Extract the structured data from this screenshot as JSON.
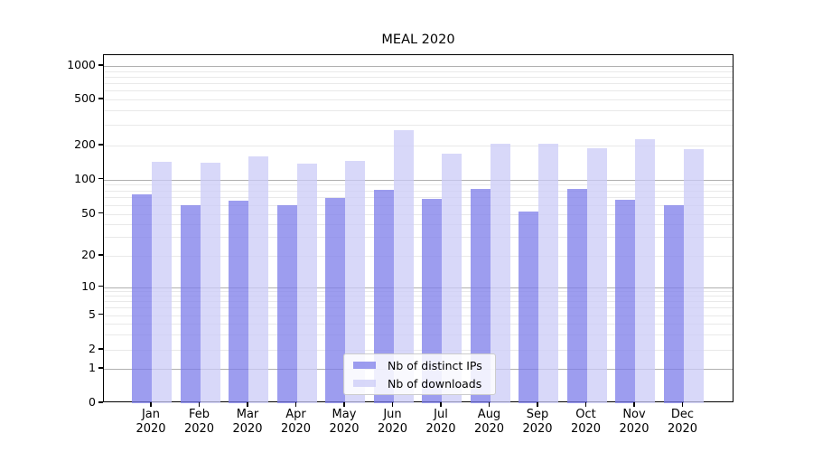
{
  "chart_data": {
    "type": "bar",
    "title": "MEAL 2020",
    "categories": [
      "Jan",
      "Feb",
      "Mar",
      "Apr",
      "May",
      "Jun",
      "Jul",
      "Aug",
      "Sep",
      "Oct",
      "Nov",
      "Dec"
    ],
    "x_year_label": "2020",
    "series": [
      {
        "name": "Nb of distinct IPs",
        "color": "rgba(124,124,233,0.75)",
        "values": [
          74,
          60,
          65,
          60,
          69,
          81,
          68,
          83,
          52,
          83,
          66,
          59
        ]
      },
      {
        "name": "Nb of downloads",
        "color": "rgba(203,203,247,0.75)",
        "values": [
          143,
          140,
          160,
          138,
          147,
          270,
          171,
          208,
          208,
          190,
          228,
          186
        ]
      }
    ],
    "y_axis": {
      "scale": "symlog",
      "ticks": [
        0,
        1,
        2,
        5,
        10,
        20,
        50,
        100,
        200,
        500,
        1000
      ],
      "range": [
        0,
        1000
      ]
    },
    "grid": "on",
    "legend_position": "lower center inside plot",
    "colors": {
      "grid_major": "#b0b0b0",
      "grid_minor": "#e9e9e9",
      "axis_frame": "#000000",
      "background": "#ffffff"
    }
  }
}
